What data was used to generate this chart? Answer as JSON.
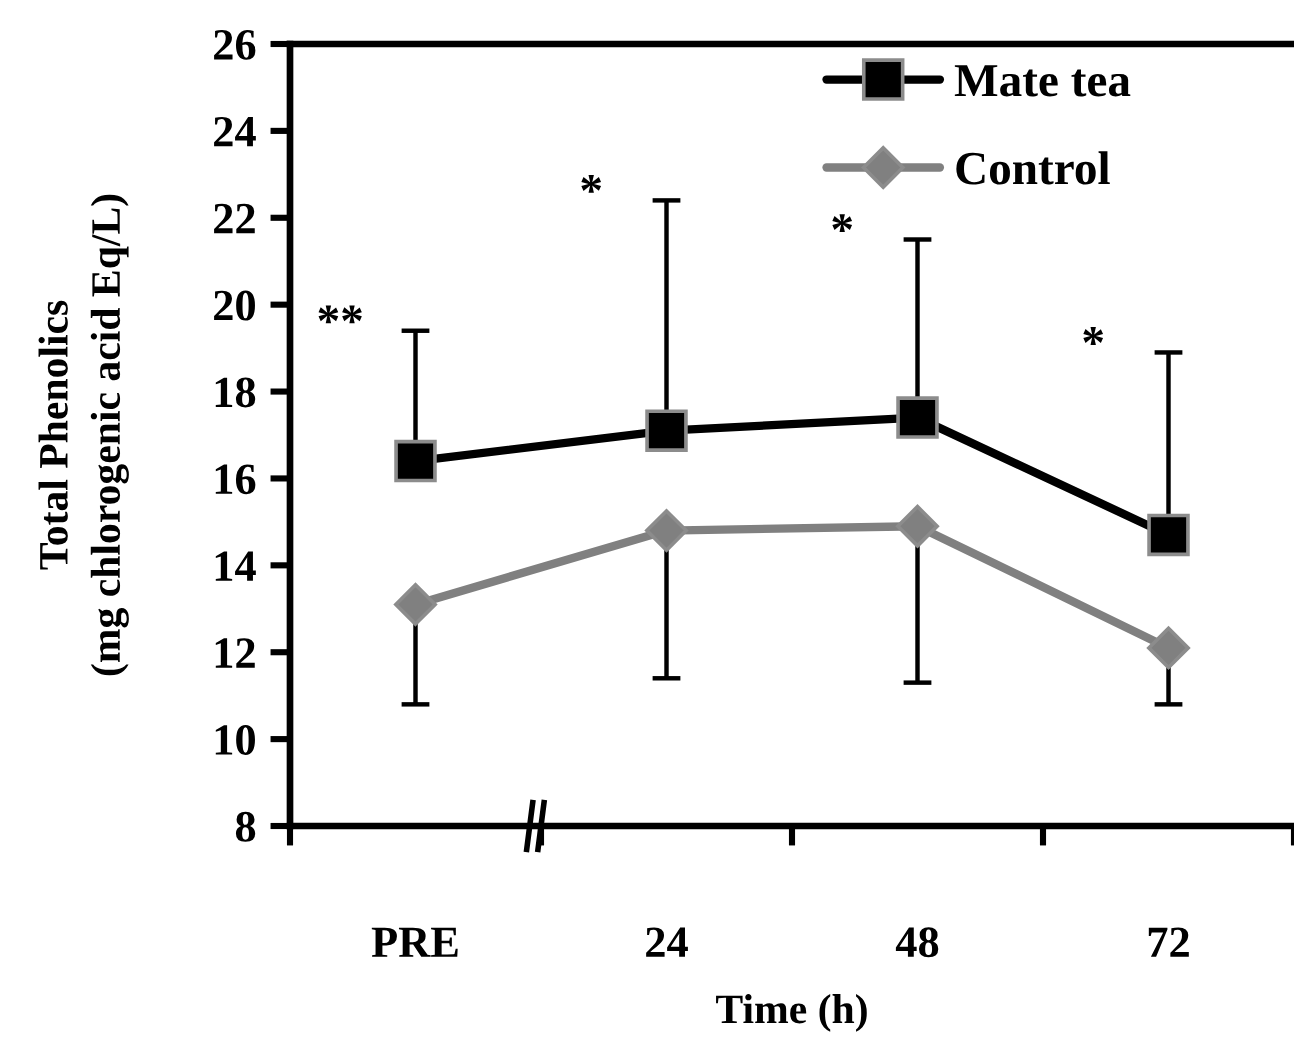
{
  "chart_data": {
    "type": "line",
    "categories": [
      "PRE",
      "24",
      "48",
      "72"
    ],
    "series": [
      {
        "name": "Mate tea",
        "color": "#000000",
        "marker": "square",
        "values": [
          16.4,
          17.1,
          17.4,
          14.7
        ],
        "errors": [
          [
            16.4,
            19.4
          ],
          [
            17.1,
            22.4
          ],
          [
            17.4,
            21.5
          ],
          [
            14.7,
            18.9
          ]
        ]
      },
      {
        "name": "Control",
        "color": "#808080",
        "marker": "diamond",
        "values": [
          13.1,
          14.8,
          14.9,
          12.1
        ],
        "errors": [
          [
            10.8,
            13.1
          ],
          [
            11.4,
            14.8
          ],
          [
            11.3,
            14.9
          ],
          [
            10.8,
            12.1
          ]
        ]
      }
    ],
    "xlabel": "Time (h)",
    "ylabel": "Total Phenolics\n(mg chlorogenic acid Eq/L)",
    "ylim": [
      8,
      26
    ],
    "yticks": [
      8,
      10,
      12,
      14,
      16,
      18,
      20,
      22,
      24,
      26
    ],
    "legend": "top right",
    "grid": false,
    "line_style": "solid",
    "annotations": [
      "**",
      "*",
      "*",
      "*"
    ]
  }
}
